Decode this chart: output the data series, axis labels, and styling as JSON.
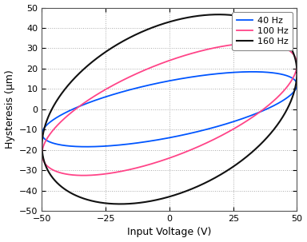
{
  "title": "",
  "xlabel": "Input Voltage (V)",
  "ylabel": "Hysteresis (μm)",
  "xlim": [
    -50,
    50
  ],
  "ylim": [
    -50,
    50
  ],
  "xticks": [
    -50,
    -25,
    0,
    25,
    50
  ],
  "yticks": [
    -50,
    -40,
    -30,
    -20,
    -10,
    0,
    10,
    20,
    30,
    40,
    50
  ],
  "legend_labels": [
    "40 Hz",
    "100 Hz",
    "160 Hz"
  ],
  "legend_colors": [
    "#0055ff",
    "#ff4488",
    "#111111"
  ],
  "curve_params": [
    {
      "B": 14.0,
      "C": 12.0,
      "color": "#0055ff",
      "label": "40 Hz",
      "lw": 1.3
    },
    {
      "B": 24.0,
      "C": 22.0,
      "color": "#ff4488",
      "label": "100 Hz",
      "lw": 1.3
    },
    {
      "B": 43.0,
      "C": 18.0,
      "color": "#111111",
      "label": "160 Hz",
      "lw": 1.5
    }
  ],
  "A": 50.0,
  "background_color": "#ffffff",
  "grid_color": "#aaaaaa",
  "figsize": [
    3.84,
    3.03
  ],
  "dpi": 100
}
